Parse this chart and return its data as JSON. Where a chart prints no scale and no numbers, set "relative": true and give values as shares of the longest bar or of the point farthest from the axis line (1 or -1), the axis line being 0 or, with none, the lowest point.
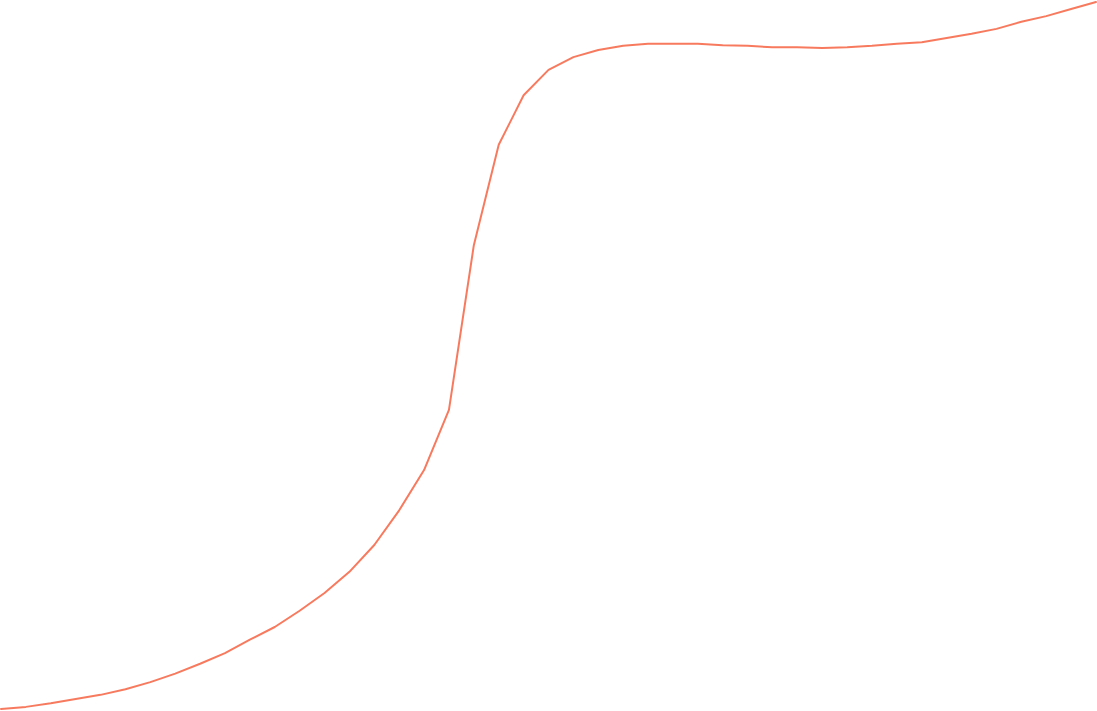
{
  "chart_data": {
    "type": "line",
    "relative": true,
    "marker": "none",
    "categories": [
      null,
      null,
      null,
      null,
      null,
      null,
      null,
      null,
      null,
      null,
      null,
      null,
      null,
      null,
      null,
      null,
      null,
      null,
      null,
      null,
      null,
      null,
      null,
      null,
      null,
      null,
      null,
      null,
      null,
      null,
      null,
      null,
      null,
      null,
      null,
      null,
      null,
      null,
      null,
      null,
      null,
      null,
      null,
      null,
      null
    ],
    "series": [
      {
        "color": "#f87a5e",
        "values": [
          0,
          0.003,
          0.008,
          0.014,
          0.02,
          0.028,
          0.038,
          0.05,
          0.064,
          0.079,
          0.098,
          0.116,
          0.139,
          0.164,
          0.194,
          0.232,
          0.281,
          0.338,
          0.423,
          0.656,
          0.798,
          0.868,
          0.904,
          0.922,
          0.932,
          0.938,
          0.941,
          0.941,
          0.941,
          0.939,
          0.938,
          0.936,
          0.936,
          0.935,
          0.936,
          0.938,
          0.941,
          0.943,
          0.949,
          0.955,
          0.962,
          0.972,
          0.98,
          0.99,
          1
        ]
      }
    ]
  }
}
